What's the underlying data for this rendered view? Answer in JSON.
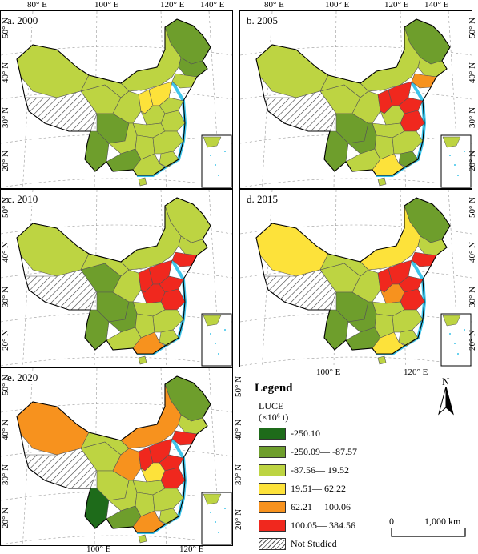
{
  "colors": {
    "c1": "#1e6b1a",
    "c2": "#6e9e2c",
    "c3": "#bdd442",
    "c4": "#fde23a",
    "c5": "#f7921e",
    "c6": "#f0281e",
    "water": "#3cc4ea",
    "graticule": "#9a9a9a"
  },
  "panels": [
    {
      "label": "a. 2000",
      "top_ticks": [
        "80° E",
        "100° E",
        "120° E",
        "140° E"
      ],
      "left_ticks": [
        "50° N",
        "40° N",
        "30° N",
        "20° N"
      ]
    },
    {
      "label": "b. 2005",
      "top_ticks": [
        "80° E",
        "100° E",
        "120° E",
        "140° E"
      ],
      "right_ticks": [
        "50° N",
        "40° N",
        "30° N",
        "20° N"
      ]
    },
    {
      "label": "c. 2010",
      "left_ticks": [
        "50° N",
        "40° N",
        "30° N",
        "20° N"
      ]
    },
    {
      "label": "d. 2015",
      "bottom_ticks": [
        "100° E",
        "120° E"
      ],
      "right_ticks": [
        "50° N",
        "40° N",
        "30° N",
        "20° N"
      ]
    },
    {
      "label": "e. 2020",
      "bottom_ticks": [
        "100° E",
        "120° E"
      ],
      "left_ticks": [
        "50° N",
        "40° N",
        "30° N",
        "20° N"
      ]
    }
  ],
  "legend": {
    "title": "Legend",
    "variable": "LUCE",
    "unit": "(×10⁶ t)",
    "classes": [
      {
        "label": "-250.10",
        "color_key": "c1"
      },
      {
        "label": "-250.09— -87.57",
        "color_key": "c2"
      },
      {
        "label": "-87.56— 19.52",
        "color_key": "c3"
      },
      {
        "label": "19.51— 62.22",
        "color_key": "c4"
      },
      {
        "label": "62.21— 100.06",
        "color_key": "c5"
      },
      {
        "label": "100.05— 384.56",
        "color_key": "c6"
      },
      {
        "label": "Not Studied",
        "color_key": "hatch"
      }
    ]
  },
  "north_arrow": {
    "label": "N"
  },
  "scale_bar": {
    "start": "0",
    "end": "1,000 km"
  }
}
